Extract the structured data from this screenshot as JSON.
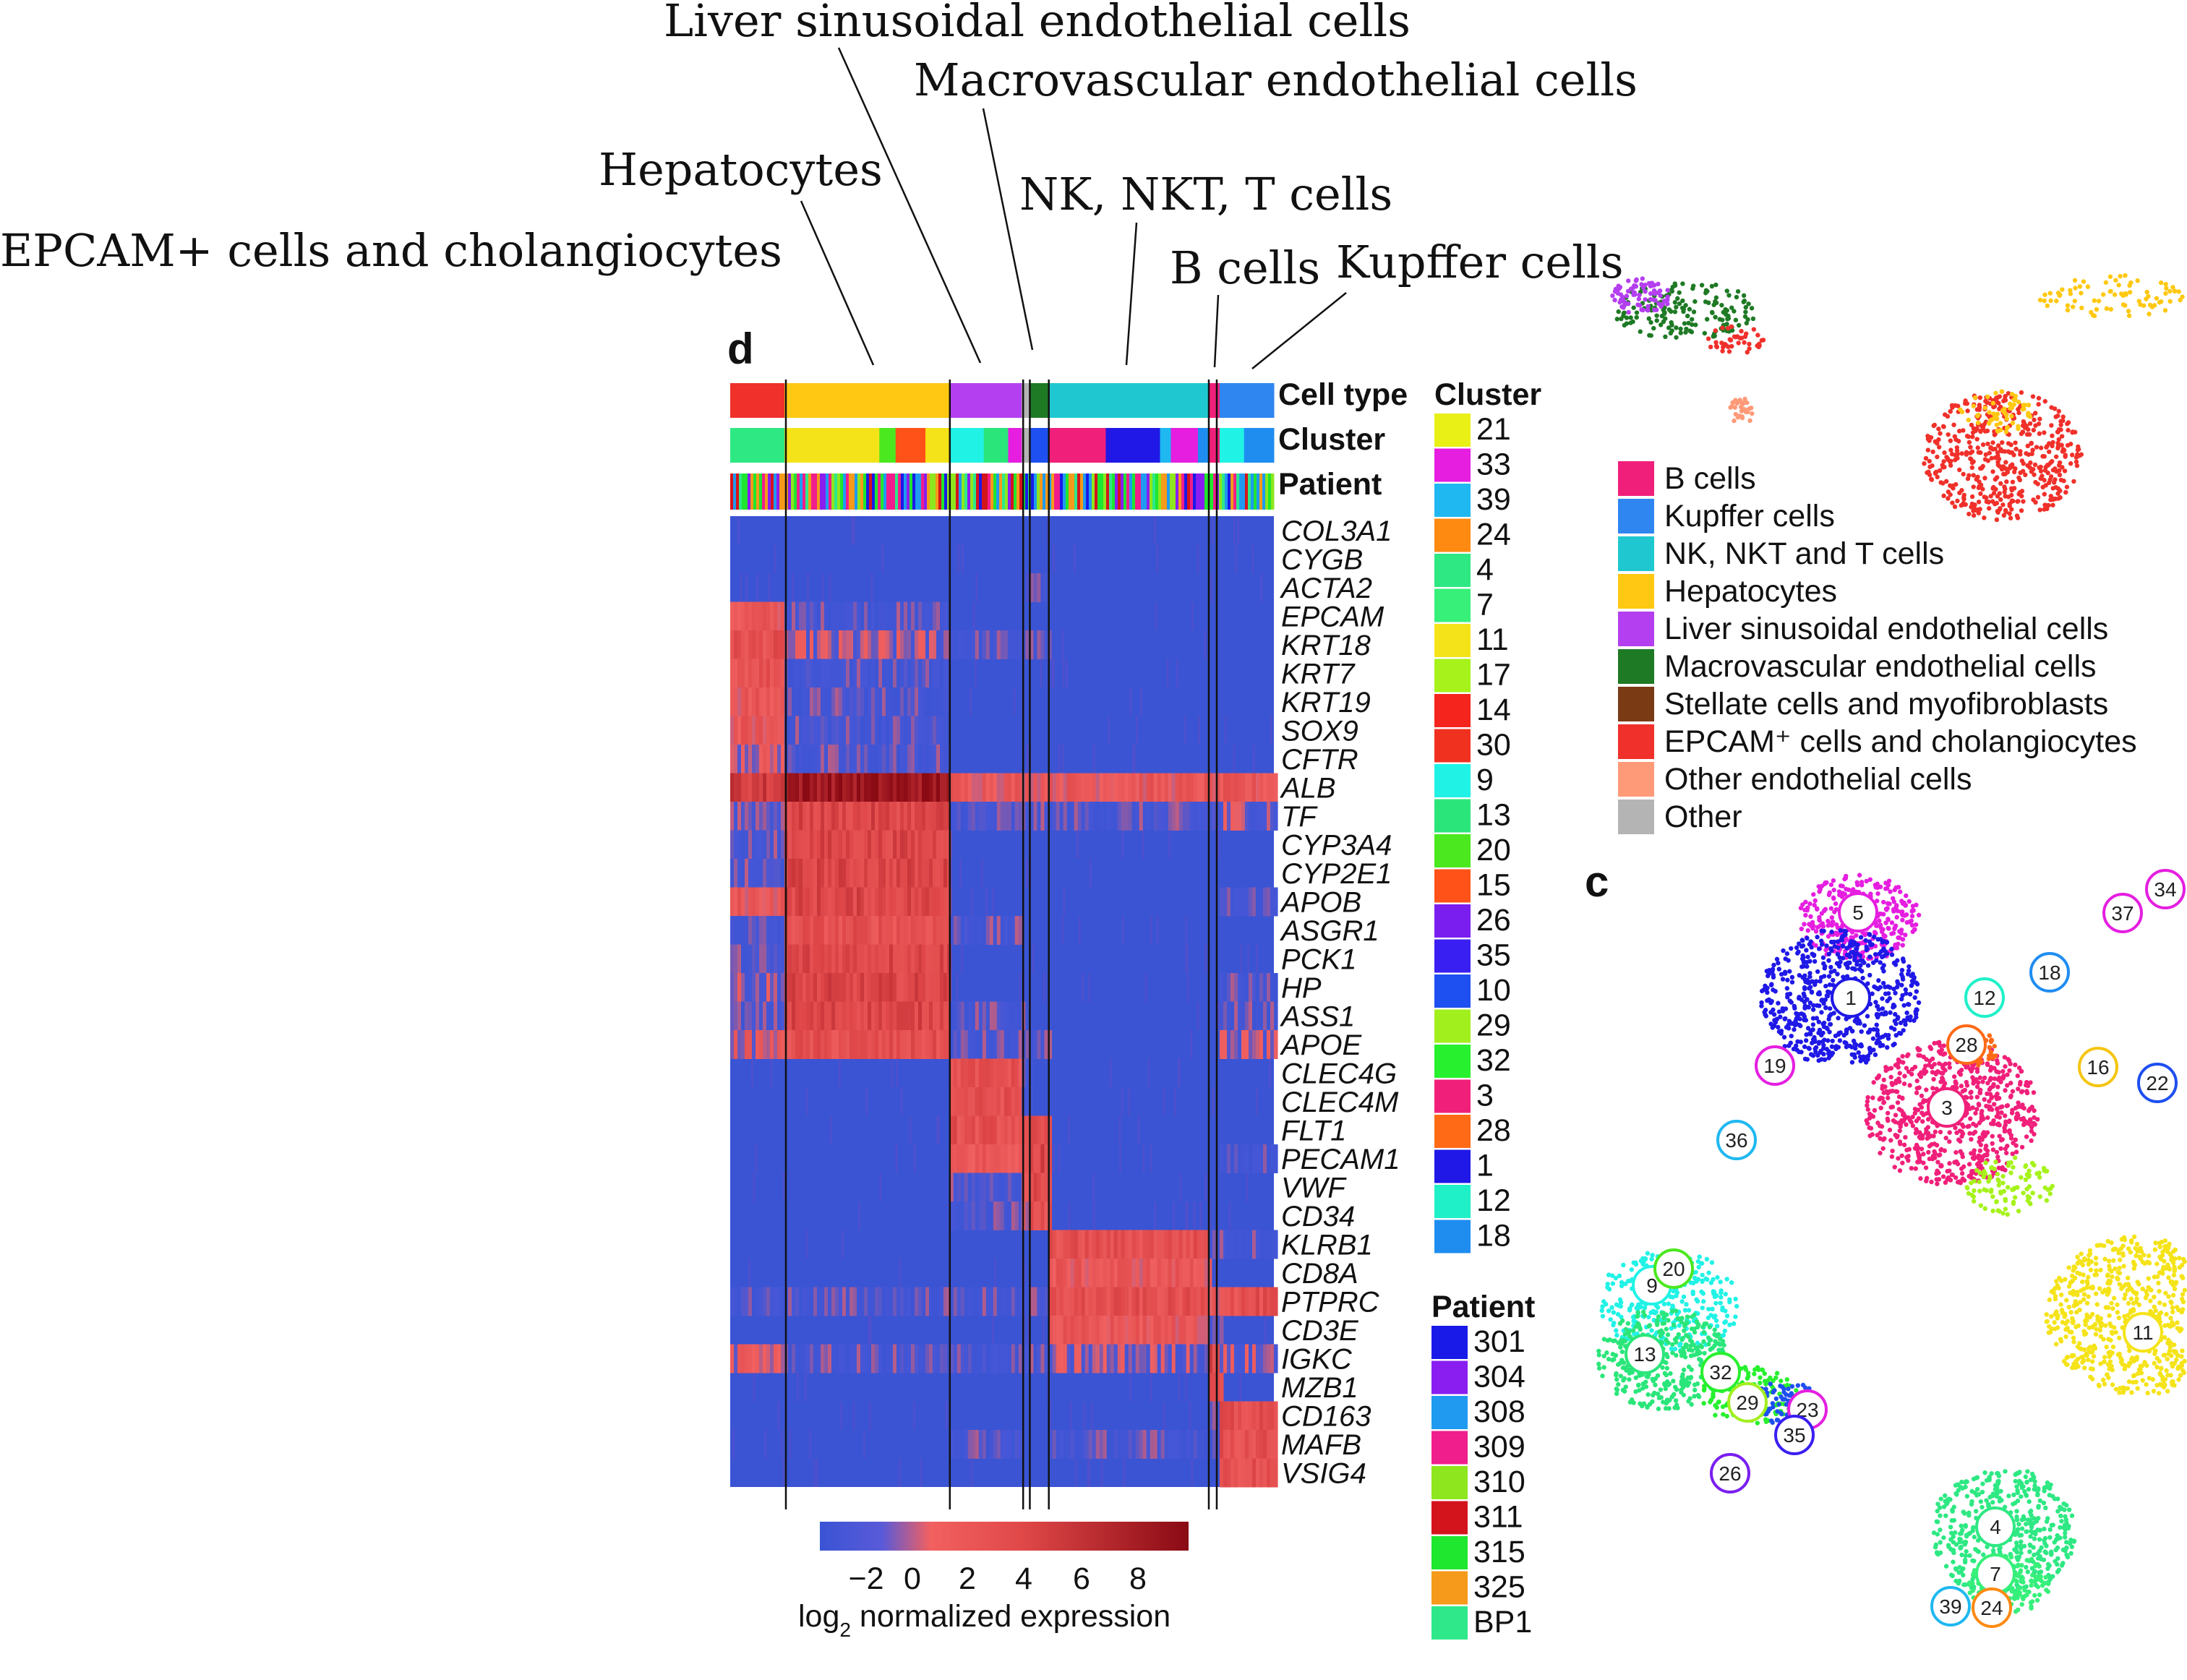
{
  "annotations": [
    "Liver sinusoidal endothelial cells",
    "Macrovascular endothelial cells",
    "Hepatocytes",
    "NK, NKT, T cells",
    "EPCAM+ cells and cholangiocytes",
    "B cells",
    "Kupffer cells"
  ],
  "panel_d_label": "d",
  "panel_c_label": "c",
  "row_labels": {
    "cell_type": "Cell type",
    "cluster": "Cluster",
    "patient": "Patient"
  },
  "cluster_legend": {
    "title": "Cluster",
    "items": [
      {
        "label": "21",
        "color": "#e8f016"
      },
      {
        "label": "33",
        "color": "#e51ee0"
      },
      {
        "label": "39",
        "color": "#1fb8f0"
      },
      {
        "label": "24",
        "color": "#ff8a12"
      },
      {
        "label": "4",
        "color": "#2ee883"
      },
      {
        "label": "7",
        "color": "#36f07a"
      },
      {
        "label": "11",
        "color": "#f5e31a"
      },
      {
        "label": "17",
        "color": "#a6f21a"
      },
      {
        "label": "14",
        "color": "#f5241c"
      },
      {
        "label": "30",
        "color": "#f0311f"
      },
      {
        "label": "9",
        "color": "#21f2e6"
      },
      {
        "label": "13",
        "color": "#2ae67a"
      },
      {
        "label": "20",
        "color": "#4be81f"
      },
      {
        "label": "15",
        "color": "#ff5218"
      },
      {
        "label": "26",
        "color": "#7a1ef0"
      },
      {
        "label": "35",
        "color": "#3a1ff2"
      },
      {
        "label": "10",
        "color": "#1e4ff0"
      },
      {
        "label": "29",
        "color": "#a2ef1e"
      },
      {
        "label": "32",
        "color": "#27f02e"
      },
      {
        "label": "3",
        "color": "#f0207a"
      },
      {
        "label": "28",
        "color": "#ff6a16"
      },
      {
        "label": "1",
        "color": "#1f18e6"
      },
      {
        "label": "12",
        "color": "#1ff0c8"
      },
      {
        "label": "18",
        "color": "#1f8df0"
      }
    ]
  },
  "patient_legend": {
    "title": "Patient",
    "items": [
      {
        "label": "301",
        "color": "#1a1ae8"
      },
      {
        "label": "304",
        "color": "#8a1ef0"
      },
      {
        "label": "308",
        "color": "#1f9af0"
      },
      {
        "label": "309",
        "color": "#f01e8c"
      },
      {
        "label": "310",
        "color": "#8ee61e"
      },
      {
        "label": "311",
        "color": "#d4141c"
      },
      {
        "label": "315",
        "color": "#1fe62e"
      },
      {
        "label": "325",
        "color": "#f59a1a"
      },
      {
        "label": "BP1",
        "color": "#2ee88a"
      }
    ]
  },
  "celltype_legend": [
    {
      "label": "B cells",
      "color": "#f0207a"
    },
    {
      "label": "Kupffer cells",
      "color": "#2f86f0"
    },
    {
      "label": "NK, NKT and T cells",
      "color": "#1fc8d0"
    },
    {
      "label": "Hepatocytes",
      "color": "#ffc812"
    },
    {
      "label": "Liver sinusoidal endothelial cells",
      "color": "#b43ff0"
    },
    {
      "label": "Macrovascular endothelial cells",
      "color": "#1e7a24"
    },
    {
      "label": "Stellate cells and myofibroblasts",
      "color": "#7a3a14"
    },
    {
      "label": "EPCAM⁺ cells and cholangiocytes",
      "color": "#f0302a"
    },
    {
      "label": "Other endothelial cells",
      "color": "#ff9a78"
    },
    {
      "label": "Other",
      "color": "#b4b4b4"
    }
  ],
  "colorbar": {
    "ticks": [
      "−2",
      "0",
      "2",
      "4",
      "6",
      "8"
    ],
    "label_prefix": "log",
    "label_sub": "2",
    "label_suffix": " normalized expression"
  },
  "cluster_markers": [
    "5",
    "1",
    "12",
    "18",
    "28",
    "19",
    "3",
    "16",
    "22",
    "37",
    "34",
    "36",
    "9",
    "20",
    "13",
    "32",
    "29",
    "23",
    "35",
    "26",
    "11",
    "4",
    "7",
    "39",
    "24"
  ],
  "chart_data": {
    "type": "heatmap",
    "xlabel": "",
    "ylabel": "",
    "genes": [
      "COL3A1",
      "CYGB",
      "ACTA2",
      "EPCAM",
      "KRT18",
      "KRT7",
      "KRT19",
      "SOX9",
      "CFTR",
      "ALB",
      "TF",
      "CYP3A4",
      "CYP2E1",
      "APOB",
      "ASGR1",
      "PCK1",
      "HP",
      "ASS1",
      "APOE",
      "CLEC4G",
      "CLEC4M",
      "FLT1",
      "PECAM1",
      "VWF",
      "CD34",
      "KLRB1",
      "CD8A",
      "PTPRC",
      "CD3E",
      "IGKC",
      "MZB1",
      "CD163",
      "MAFB",
      "VSIG4"
    ],
    "cell_groups": [
      {
        "name": "EPCAM+ cells and cholangiocytes",
        "width": 40,
        "color": "#f0302a"
      },
      {
        "name": "Hepatocytes",
        "width": 122,
        "color": "#ffc812"
      },
      {
        "name": "Liver sinusoidal endothelial cells",
        "width": 53,
        "color": "#b43ff0"
      },
      {
        "name": "Other",
        "width": 6,
        "color": "#b4b4b4"
      },
      {
        "name": "Macrovascular endothelial cells",
        "width": 14,
        "color": "#1e7a24"
      },
      {
        "name": "NK, NKT, T cells",
        "width": 118,
        "color": "#1fc8d0"
      },
      {
        "name": "B cells",
        "width": 8,
        "color": "#f0207a"
      },
      {
        "name": "Kupffer cells",
        "width": 40,
        "color": "#2f86f0"
      }
    ],
    "expression": [
      [
        -2,
        -2,
        -2,
        -2,
        -2,
        -2,
        -2,
        -2
      ],
      [
        -2,
        -2,
        -2,
        -2,
        -2,
        -2,
        -2,
        -2
      ],
      [
        -2,
        -2,
        -2,
        -2,
        -1,
        -2,
        -2,
        -2
      ],
      [
        2,
        -1,
        -2,
        -2,
        -2,
        -2,
        -2,
        -2
      ],
      [
        3,
        0,
        -1,
        -1,
        -1,
        -2,
        -2,
        -2
      ],
      [
        3,
        -1,
        -2,
        -2,
        -2,
        -2,
        -2,
        -2
      ],
      [
        2,
        -1,
        -2,
        -2,
        -2,
        -2,
        -2,
        -2
      ],
      [
        2,
        -1,
        -2,
        -2,
        -2,
        -2,
        -2,
        -2
      ],
      [
        1,
        -1,
        -2,
        -2,
        -2,
        -2,
        -2,
        -2
      ],
      [
        5,
        8,
        2,
        2,
        2,
        2,
        2,
        2
      ],
      [
        0,
        4,
        -1,
        -1,
        -1,
        -1,
        -1,
        0
      ],
      [
        -1,
        4,
        -2,
        -2,
        -2,
        -2,
        -2,
        -2
      ],
      [
        -1,
        4,
        -2,
        -2,
        -2,
        -2,
        -2,
        -2
      ],
      [
        2,
        4,
        -2,
        -2,
        -2,
        -2,
        -2,
        -1
      ],
      [
        -1,
        3,
        -1,
        -2,
        -2,
        -2,
        -2,
        -2
      ],
      [
        -1,
        4,
        -2,
        -2,
        -2,
        -2,
        -2,
        -2
      ],
      [
        0,
        4,
        -2,
        -2,
        -2,
        -2,
        -2,
        -1
      ],
      [
        -1,
        4,
        -1,
        -1,
        -2,
        -2,
        -2,
        -1
      ],
      [
        1,
        3,
        -1,
        -1,
        -1,
        -2,
        -2,
        0
      ],
      [
        -2,
        -2,
        3,
        -1,
        -2,
        -2,
        -2,
        -2
      ],
      [
        -2,
        -2,
        3,
        -1,
        -2,
        -2,
        -2,
        -2
      ],
      [
        -2,
        -2,
        3,
        2,
        3,
        -2,
        -2,
        -2
      ],
      [
        -2,
        -2,
        2,
        2,
        4,
        -2,
        -2,
        -1
      ],
      [
        -2,
        -2,
        -1,
        1,
        4,
        -2,
        -2,
        -2
      ],
      [
        -2,
        -2,
        -1,
        1,
        3,
        -2,
        -2,
        -2
      ],
      [
        -2,
        -2,
        -2,
        -2,
        -2,
        3,
        -1,
        -1
      ],
      [
        -2,
        -2,
        -2,
        -2,
        -2,
        2,
        -2,
        -2
      ],
      [
        -1,
        -1,
        -1,
        -1,
        -1,
        3,
        2,
        3
      ],
      [
        -2,
        -2,
        -2,
        -2,
        -2,
        2,
        -1,
        -2
      ],
      [
        1,
        -1,
        -1,
        -1,
        -1,
        0,
        4,
        0
      ],
      [
        -2,
        -2,
        -2,
        -2,
        -2,
        -2,
        3,
        -2
      ],
      [
        -2,
        -2,
        -2,
        -2,
        -2,
        -2,
        -1,
        3
      ],
      [
        -2,
        -2,
        -1,
        -2,
        -2,
        -1,
        -1,
        3
      ],
      [
        -2,
        -2,
        -2,
        -2,
        -2,
        -2,
        -2,
        3
      ]
    ],
    "color_range": [
      -3,
      9
    ]
  }
}
